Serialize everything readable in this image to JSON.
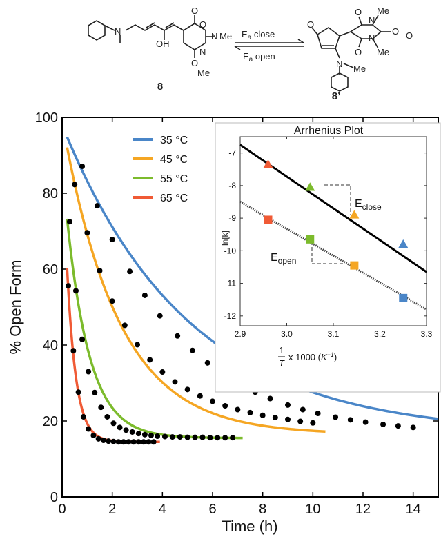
{
  "scheme": {
    "compound_open": "8",
    "compound_closed": "8’",
    "arrow_top_label": "E",
    "arrow_top_sub": "a",
    "arrow_top_word": " close",
    "arrow_bottom_label": "E",
    "arrow_bottom_sub": "a",
    "arrow_bottom_word": " open",
    "atom_labels": [
      "N",
      "OH",
      "O",
      "O",
      "N",
      "Me",
      "O",
      "N",
      "Me",
      "O",
      "O",
      "N",
      "O",
      "O",
      "N",
      "Me",
      "Me",
      "N",
      "Me",
      "O"
    ]
  },
  "chart_data": [
    {
      "type": "line",
      "title": "",
      "xlabel": "Time (h)",
      "ylabel": "% Open Form",
      "xlim": [
        0,
        15
      ],
      "ylim": [
        0,
        100
      ],
      "xticks": [
        "0",
        "2",
        "4",
        "6",
        "8",
        "10",
        "12",
        "14"
      ],
      "yticks": [
        "0",
        "20",
        "40",
        "60",
        "80",
        "100"
      ],
      "grid": false,
      "legend_position": "top-left",
      "series": [
        {
          "name": "35 °C",
          "color": "#4a86c8",
          "fit": {
            "plateau": 16.5,
            "amplitude": 81.5,
            "k": 0.2,
            "x_start": 0.2,
            "x_end": 15.0
          },
          "points_x": [
            0.8,
            1.4,
            2.0,
            2.7,
            3.3,
            3.9,
            4.6,
            5.2,
            5.8,
            6.4,
            7.1,
            7.7,
            8.3,
            9.0,
            9.6,
            10.2,
            10.9,
            11.5,
            12.1,
            12.8,
            13.4,
            14.0
          ],
          "points_y": [
            87.1,
            76.7,
            67.8,
            59.4,
            53.1,
            47.7,
            42.4,
            38.6,
            35.3,
            32.4,
            29.7,
            27.6,
            25.9,
            24.2,
            23.0,
            22.0,
            21.0,
            20.3,
            19.7,
            19.1,
            18.7,
            18.3
          ]
        },
        {
          "name": "45 °C",
          "color": "#f5a623",
          "fit": {
            "plateau": 16.5,
            "amplitude": 82.7,
            "k": 0.45,
            "x_start": 0.2,
            "x_end": 10.5
          },
          "points_x": [
            0.5,
            1.0,
            1.5,
            2.0,
            2.5,
            3.0,
            3.5,
            4.0,
            4.5,
            5.0,
            5.5,
            6.0,
            6.5,
            7.0,
            7.5,
            8.0,
            8.5,
            9.0,
            9.5,
            10.0
          ],
          "points_y": [
            82.3,
            69.6,
            59.6,
            51.6,
            45.2,
            40.1,
            36.1,
            32.9,
            30.3,
            28.3,
            26.6,
            25.2,
            24.0,
            23.0,
            22.2,
            21.5,
            20.9,
            20.4,
            19.9,
            19.5
          ]
        },
        {
          "name": "55 °C",
          "color": "#7cbb2c",
          "fit": {
            "plateau": 15.5,
            "amplitude": 72.0,
            "k": 1.1,
            "x_start": 0.2,
            "x_end": 7.2
          },
          "points_x": [
            0.3,
            0.55,
            0.8,
            1.05,
            1.3,
            1.55,
            1.8,
            2.05,
            2.3,
            2.55,
            2.8,
            3.05,
            3.3,
            3.55,
            3.8,
            4.1,
            4.4,
            4.7,
            5.0,
            5.3,
            5.6,
            5.9,
            6.2,
            6.5,
            6.8
          ],
          "points_y": [
            72.5,
            54.3,
            41.5,
            33.0,
            27.5,
            23.6,
            21.1,
            19.4,
            18.3,
            17.6,
            17.1,
            16.7,
            16.4,
            16.2,
            16.0,
            15.9,
            15.8,
            15.8,
            15.7,
            15.7,
            15.7,
            15.6,
            15.6,
            15.6,
            15.6
          ]
        },
        {
          "name": "65 °C",
          "color": "#f05a35",
          "fit": {
            "plateau": 14.5,
            "amplitude": 80.0,
            "k": 2.8,
            "x_start": 0.2,
            "x_end": 3.9
          },
          "points_x": [
            0.25,
            0.45,
            0.65,
            0.85,
            1.05,
            1.25,
            1.45,
            1.65,
            1.85,
            2.05,
            2.25,
            2.45,
            2.65,
            2.85,
            3.05,
            3.25,
            3.45,
            3.65
          ],
          "points_y": [
            55.6,
            38.5,
            27.6,
            21.1,
            17.9,
            16.2,
            15.3,
            14.9,
            14.7,
            14.6,
            14.5,
            14.5,
            14.5,
            14.5,
            14.5,
            14.5,
            14.5,
            14.5
          ]
        }
      ]
    },
    {
      "type": "scatter",
      "title": "Arrhenius Plot",
      "xlabel_num": "1",
      "xlabel_den": "T",
      "xlabel_rest": " x 1000 (",
      "xlabel_unit": "K",
      "xlabel_exp": "−1",
      "xlabel_close": ")",
      "ylabel": "ln[k]",
      "xlim": [
        2.9,
        3.3
      ],
      "ylim": [
        -12.3,
        -6.5
      ],
      "xticks": [
        "2.9",
        "3.0",
        "3.1",
        "3.2",
        "3.3"
      ],
      "yticks": [
        "-7",
        "-8",
        "-9",
        "-10",
        "-11",
        "-12"
      ],
      "annotations": [
        {
          "text": "E",
          "sub": "close"
        },
        {
          "text": "E",
          "sub": "open"
        }
      ],
      "lines": [
        {
          "style": "solid",
          "color": "#000000",
          "x1": 2.9,
          "y1": -6.75,
          "x2": 3.3,
          "y2": -10.65
        },
        {
          "style": "dotted",
          "color": "#444444",
          "x1": 2.9,
          "y1": -8.5,
          "x2": 3.3,
          "y2": -11.8
        }
      ],
      "triangles": [
        {
          "x": 2.96,
          "y": -7.35,
          "color": "#f05a35"
        },
        {
          "x": 3.05,
          "y": -8.05,
          "color": "#7cbb2c"
        },
        {
          "x": 3.145,
          "y": -8.9,
          "color": "#f5a623"
        },
        {
          "x": 3.25,
          "y": -9.8,
          "color": "#4a86c8"
        }
      ],
      "squares": [
        {
          "x": 2.96,
          "y": -9.05,
          "color": "#f05a35"
        },
        {
          "x": 3.05,
          "y": -9.65,
          "color": "#7cbb2c"
        },
        {
          "x": 3.145,
          "y": -10.45,
          "color": "#f5a623"
        },
        {
          "x": 3.25,
          "y": -11.45,
          "color": "#4a86c8"
        }
      ]
    }
  ]
}
